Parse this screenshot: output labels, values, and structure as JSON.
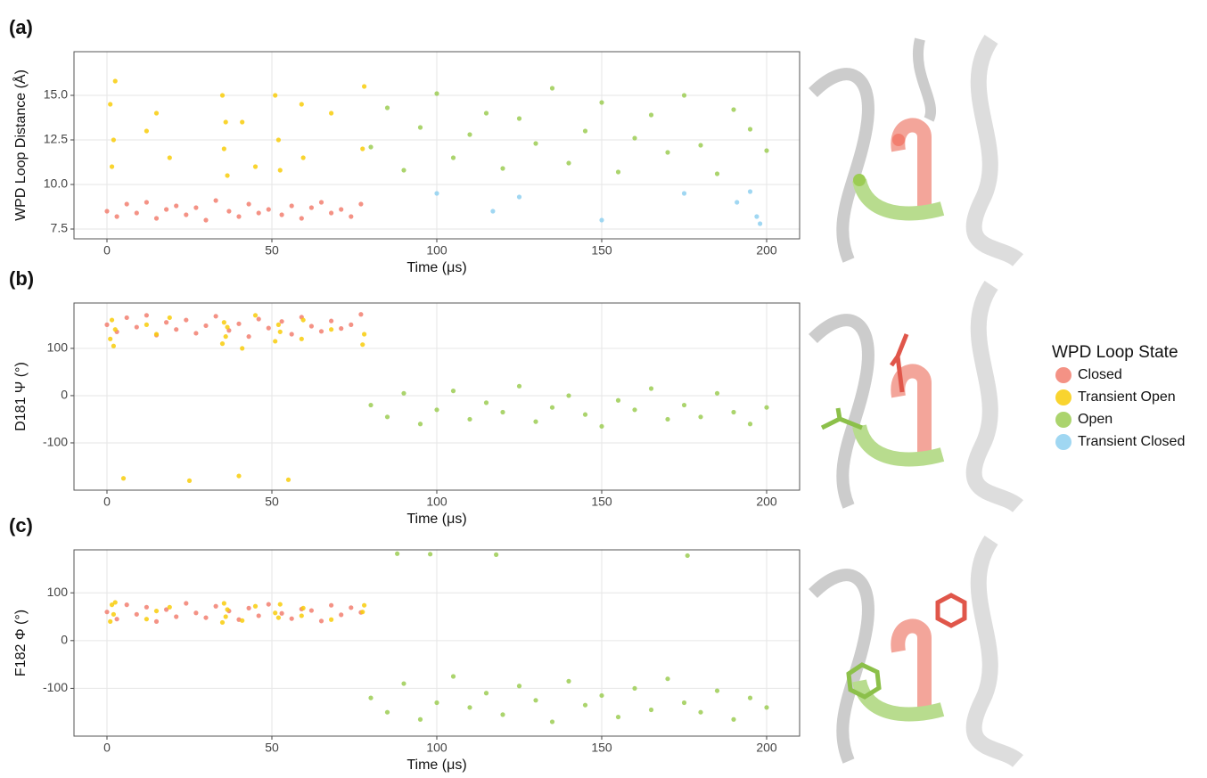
{
  "chart_data": [
    {
      "type": "scatter",
      "panel_label": "(a)",
      "xlabel": "Time (μs)",
      "ylabel": "WPD Loop Distance (Å)",
      "legend_title": "WPD Loop State",
      "legend": "right",
      "grid": true,
      "xlim": [
        -10,
        210
      ],
      "xticks": [
        0,
        50,
        100,
        150,
        200
      ],
      "ylim": [
        6.95,
        17.45
      ],
      "yticks": [
        7.5,
        {
          "value": 10,
          "label": "10.0"
        },
        12.5,
        {
          "value": 15,
          "label": "15.0"
        }
      ],
      "series": [
        {
          "name": "Closed",
          "color": "#f27f70",
          "x": [
            0,
            3,
            6,
            9,
            12,
            15,
            18,
            21,
            24,
            27,
            30,
            33,
            37,
            40,
            43,
            46,
            49,
            53,
            56,
            59,
            62,
            65,
            68,
            71,
            74,
            77
          ],
          "values": [
            8.5,
            8.2,
            8.9,
            8.4,
            9.0,
            8.1,
            8.6,
            8.8,
            8.3,
            8.7,
            8.0,
            9.1,
            8.5,
            8.2,
            8.9,
            8.4,
            8.6,
            8.3,
            8.8,
            8.1,
            8.7,
            9.0,
            8.4,
            8.6,
            8.2,
            8.9
          ]
        },
        {
          "name": "Transient Open",
          "color": "#f8cc0a",
          "x": [
            1,
            1.5,
            2,
            2.5,
            12,
            15,
            19,
            35,
            35.5,
            36,
            36.5,
            41,
            45,
            51,
            52,
            52.5,
            59,
            59.5,
            68,
            77.5,
            78
          ],
          "values": [
            14.5,
            11,
            12.5,
            15.8,
            13,
            14,
            11.5,
            15,
            12,
            13.5,
            10.5,
            13.5,
            11,
            15,
            12.5,
            10.8,
            14.5,
            11.5,
            14.0,
            12,
            15.5
          ]
        },
        {
          "name": "Open",
          "color": "#9ccc54",
          "x": [
            80,
            85,
            90,
            95,
            100,
            105,
            110,
            115,
            120,
            125,
            130,
            135,
            140,
            145,
            150,
            155,
            160,
            165,
            170,
            175,
            180,
            185,
            190,
            195,
            200
          ],
          "values": [
            12.1,
            14.3,
            10.8,
            13.2,
            15.1,
            11.5,
            12.8,
            14.0,
            10.9,
            13.7,
            12.3,
            15.4,
            11.2,
            13.0,
            14.6,
            10.7,
            12.6,
            13.9,
            11.8,
            15.0,
            12.2,
            10.6,
            14.2,
            13.1,
            11.9
          ]
        },
        {
          "name": "Transient Closed",
          "color": "#8fd0f0",
          "x": [
            100,
            117,
            125,
            150,
            175,
            191,
            195,
            197,
            198
          ],
          "values": [
            9.5,
            8.5,
            9.3,
            8.0,
            9.5,
            9.0,
            9.6,
            8.2,
            7.8
          ]
        }
      ]
    },
    {
      "type": "scatter",
      "panel_label": "(b)",
      "xlabel": "Time (μs)",
      "ylabel": "D181 Ψ (°)",
      "grid": true,
      "xlim": [
        -10,
        210
      ],
      "xticks": [
        0,
        50,
        100,
        150,
        200
      ],
      "ylim": [
        -200,
        196
      ],
      "yticks": [
        -100,
        0,
        100
      ],
      "series": [
        {
          "name": "Closed",
          "color": "#f27f70",
          "x": [
            0,
            3,
            6,
            9,
            12,
            15,
            18,
            21,
            24,
            27,
            30,
            33,
            37,
            40,
            43,
            46,
            49,
            53,
            56,
            59,
            62,
            65,
            68,
            71,
            74,
            77
          ],
          "values": [
            150,
            135,
            165,
            145,
            170,
            128,
            155,
            140,
            160,
            132,
            148,
            168,
            138,
            152,
            125,
            162,
            143,
            157,
            130,
            166,
            147,
            136,
            158,
            142,
            150,
            172
          ]
        },
        {
          "name": "Transient Open",
          "color": "#f8cc0a",
          "x": [
            1,
            1.5,
            2,
            2.5,
            12,
            15,
            19,
            35,
            35.5,
            36,
            36.5,
            41,
            45,
            51,
            52,
            52.5,
            59,
            59.5,
            68,
            77.5,
            78,
            5,
            25,
            40,
            55
          ],
          "values": [
            120,
            160,
            105,
            140,
            150,
            130,
            165,
            110,
            155,
            125,
            145,
            100,
            170,
            115,
            150,
            135,
            120,
            160,
            140,
            108,
            130,
            -175,
            -180,
            -170,
            -178
          ]
        },
        {
          "name": "Open",
          "color": "#9ccc54",
          "x": [
            80,
            85,
            90,
            95,
            100,
            105,
            110,
            115,
            120,
            125,
            130,
            135,
            140,
            145,
            150,
            155,
            160,
            165,
            170,
            175,
            180,
            185,
            190,
            195,
            200
          ],
          "values": [
            -20,
            -45,
            5,
            -60,
            -30,
            10,
            -50,
            -15,
            -35,
            20,
            -55,
            -25,
            0,
            -40,
            -65,
            -10,
            -30,
            15,
            -50,
            -20,
            -45,
            5,
            -35,
            -60,
            -25
          ]
        }
      ]
    },
    {
      "type": "scatter",
      "panel_label": "(c)",
      "xlabel": "Time (μs)",
      "ylabel": "F182 Φ (°)",
      "grid": true,
      "xlim": [
        -10,
        210
      ],
      "xticks": [
        0,
        50,
        100,
        150,
        200
      ],
      "ylim": [
        -200,
        190
      ],
      "yticks": [
        -100,
        0,
        100
      ],
      "series": [
        {
          "name": "Closed",
          "color": "#f27f70",
          "x": [
            0,
            3,
            6,
            9,
            12,
            15,
            18,
            21,
            24,
            27,
            30,
            33,
            37,
            40,
            43,
            46,
            49,
            53,
            56,
            59,
            62,
            65,
            68,
            71,
            74,
            77
          ],
          "values": [
            60,
            45,
            75,
            55,
            70,
            40,
            65,
            50,
            78,
            58,
            48,
            72,
            62,
            44,
            68,
            52,
            76,
            57,
            46,
            66,
            63,
            41,
            74,
            54,
            69,
            59
          ]
        },
        {
          "name": "Transient Open",
          "color": "#f8cc0a",
          "x": [
            1,
            1.5,
            2,
            2.5,
            12,
            15,
            19,
            35,
            35.5,
            36,
            36.5,
            41,
            45,
            51,
            52,
            52.5,
            59,
            59.5,
            68,
            77.5,
            78
          ],
          "values": [
            40,
            75,
            55,
            80,
            45,
            62,
            70,
            38,
            78,
            50,
            65,
            42,
            72,
            58,
            48,
            76,
            52,
            68,
            44,
            60,
            74
          ]
        },
        {
          "name": "Open",
          "color": "#9ccc54",
          "x": [
            80,
            85,
            90,
            95,
            100,
            105,
            110,
            115,
            120,
            125,
            130,
            135,
            140,
            145,
            150,
            155,
            160,
            165,
            170,
            175,
            180,
            185,
            190,
            195,
            200,
            88,
            98,
            118,
            176
          ],
          "values": [
            -120,
            -150,
            -90,
            -165,
            -130,
            -75,
            -140,
            -110,
            -155,
            -95,
            -125,
            -170,
            -85,
            -135,
            -115,
            -160,
            -100,
            -145,
            -80,
            -130,
            -150,
            -105,
            -165,
            -120,
            -140,
            182,
            181,
            180,
            178
          ]
        }
      ]
    }
  ]
}
